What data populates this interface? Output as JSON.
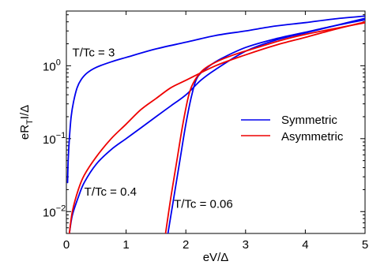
{
  "chart_data": {
    "type": "line",
    "xlabel": "eV/Δ",
    "ylabel": {
      "main": "eR",
      "subscript": "T",
      "rest": "I/Δ"
    },
    "xlim": [
      0,
      5
    ],
    "ylim_log10": [
      -2.3,
      0.75
    ],
    "y_scale": "log",
    "x_ticks": [
      {
        "value": 0,
        "label": "0"
      },
      {
        "value": 1,
        "label": "1"
      },
      {
        "value": 2,
        "label": "2"
      },
      {
        "value": 3,
        "label": "3"
      },
      {
        "value": 4,
        "label": "4"
      },
      {
        "value": 5,
        "label": "5"
      }
    ],
    "y_ticks": [
      {
        "exp": 0,
        "base": "10",
        "power": "0"
      },
      {
        "exp": -1,
        "base": "10",
        "power": "−1"
      },
      {
        "exp": -2,
        "base": "10",
        "power": "−2"
      }
    ],
    "grid": false,
    "legend_position": "center-right",
    "colors": {
      "symmetric": "#0000ee",
      "asymmetric": "#ee0000"
    },
    "annotations": [
      {
        "text": "T/Tc = 3",
        "x": 0.1,
        "y_log10": 0.13
      },
      {
        "text": "T/Tc = 0.4",
        "x": 0.3,
        "y_log10": -1.78
      },
      {
        "text": "T/Tc = 0.06",
        "x": 1.8,
        "y_log10": -1.95
      }
    ],
    "series": [
      {
        "name": "Symmetric",
        "color_key": "symmetric",
        "group": "T/Tc = 3",
        "x": [
          0.02,
          0.03,
          0.05,
          0.08,
          0.12,
          0.18,
          0.25,
          0.35,
          0.5,
          0.75,
          1.0,
          1.5,
          2.0,
          2.5,
          3.0,
          3.5,
          4.0,
          4.5,
          5.0
        ],
        "y": [
          0.025,
          0.05,
          0.1,
          0.2,
          0.32,
          0.5,
          0.65,
          0.8,
          0.95,
          1.13,
          1.3,
          1.7,
          2.1,
          2.6,
          3.0,
          3.5,
          3.9,
          4.4,
          4.8
        ]
      },
      {
        "name": "Symmetric",
        "color_key": "symmetric",
        "group": "T/Tc = 0.4",
        "x": [
          0.05,
          0.1,
          0.2,
          0.3,
          0.5,
          0.75,
          1.0,
          1.25,
          1.5,
          1.75,
          2.0,
          2.25,
          2.5,
          3.0,
          3.5,
          4.0,
          4.5,
          5.0
        ],
        "y": [
          0.005,
          0.0089,
          0.0158,
          0.0251,
          0.0447,
          0.0708,
          0.1,
          0.141,
          0.2,
          0.282,
          0.398,
          0.631,
          0.891,
          1.58,
          2.24,
          2.82,
          3.55,
          4.47
        ]
      },
      {
        "name": "Symmetric",
        "color_key": "symmetric",
        "group": "T/Tc = 0.06",
        "x": [
          1.7,
          1.8,
          1.9,
          2.0,
          2.1,
          2.2,
          2.4,
          2.6,
          3.0,
          3.5,
          4.0,
          4.5,
          5.0
        ],
        "y": [
          0.005,
          0.0158,
          0.0501,
          0.158,
          0.398,
          0.708,
          1.0,
          1.26,
          1.78,
          2.34,
          2.88,
          3.55,
          4.27
        ]
      },
      {
        "name": "Asymmetric",
        "color_key": "asymmetric",
        "group": "T/Tc = 0.4",
        "x": [
          0.05,
          0.1,
          0.2,
          0.3,
          0.5,
          0.75,
          1.0,
          1.25,
          1.5,
          1.75,
          2.0,
          2.5,
          3.0,
          3.5,
          4.0,
          4.5,
          5.0
        ],
        "y": [
          0.005,
          0.01,
          0.02,
          0.0316,
          0.0562,
          0.1,
          0.158,
          0.251,
          0.355,
          0.5,
          0.631,
          1.0,
          1.41,
          1.91,
          2.45,
          3.16,
          3.98
        ]
      },
      {
        "name": "Asymmetric",
        "color_key": "asymmetric",
        "group": "T/Tc = 0.06",
        "x": [
          1.66,
          1.75,
          1.85,
          1.95,
          2.05,
          2.15,
          2.3,
          2.5,
          2.8,
          3.2,
          3.6,
          4.0,
          4.5,
          5.0
        ],
        "y": [
          0.005,
          0.0158,
          0.05,
          0.158,
          0.398,
          0.631,
          0.891,
          1.12,
          1.41,
          1.78,
          2.24,
          2.69,
          3.24,
          3.89
        ]
      }
    ],
    "legend": [
      {
        "label": "Symmetric",
        "color_key": "symmetric"
      },
      {
        "label": "Asymmetric",
        "color_key": "asymmetric"
      }
    ]
  }
}
